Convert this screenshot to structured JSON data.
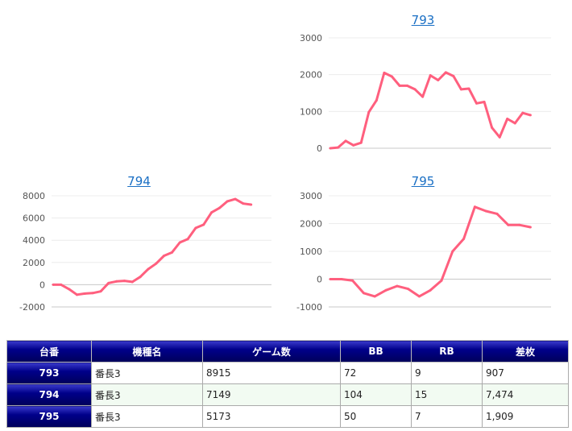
{
  "chart_data": [
    {
      "type": "line",
      "title": "793",
      "ylim": [
        0,
        3000
      ],
      "yticks": [
        "3000",
        "2000",
        "1000",
        "0"
      ],
      "color": "#ff5f7e",
      "values": [
        0,
        20,
        200,
        80,
        150,
        980,
        1300,
        2050,
        1950,
        1700,
        1700,
        1600,
        1400,
        1980,
        1850,
        2060,
        1960,
        1600,
        1620,
        1220,
        1260,
        560,
        300,
        800,
        680,
        960,
        900
      ]
    },
    {
      "type": "line",
      "title": "794",
      "ylim": [
        -2000,
        8000
      ],
      "yticks": [
        "8000",
        "6000",
        "4000",
        "2000",
        "0",
        "-2000"
      ],
      "color": "#ff5f7e",
      "values": [
        0,
        0,
        -400,
        -900,
        -800,
        -750,
        -600,
        150,
        300,
        350,
        250,
        700,
        1400,
        1900,
        2600,
        2900,
        3800,
        4100,
        5100,
        5400,
        6500,
        6900,
        7500,
        7700,
        7300,
        7200
      ]
    },
    {
      "type": "line",
      "title": "795",
      "ylim": [
        -1000,
        3000
      ],
      "yticks": [
        "3000",
        "2000",
        "1000",
        "0",
        "-1000"
      ],
      "color": "#ff5f7e",
      "values": [
        0,
        0,
        -50,
        -500,
        -620,
        -400,
        -250,
        -350,
        -620,
        -400,
        -50,
        1000,
        1450,
        2600,
        2450,
        2350,
        1950,
        1950,
        1870
      ]
    }
  ],
  "table": {
    "headers": [
      "台番",
      "機種名",
      "ゲーム数",
      "BB",
      "RB",
      "差枚"
    ],
    "rows": [
      [
        "793",
        "番長3",
        "8915",
        "72",
        "9",
        "907"
      ],
      [
        "794",
        "番長3",
        "7149",
        "104",
        "15",
        "7,474"
      ],
      [
        "795",
        "番長3",
        "5173",
        "50",
        "7",
        "1,909"
      ]
    ]
  }
}
